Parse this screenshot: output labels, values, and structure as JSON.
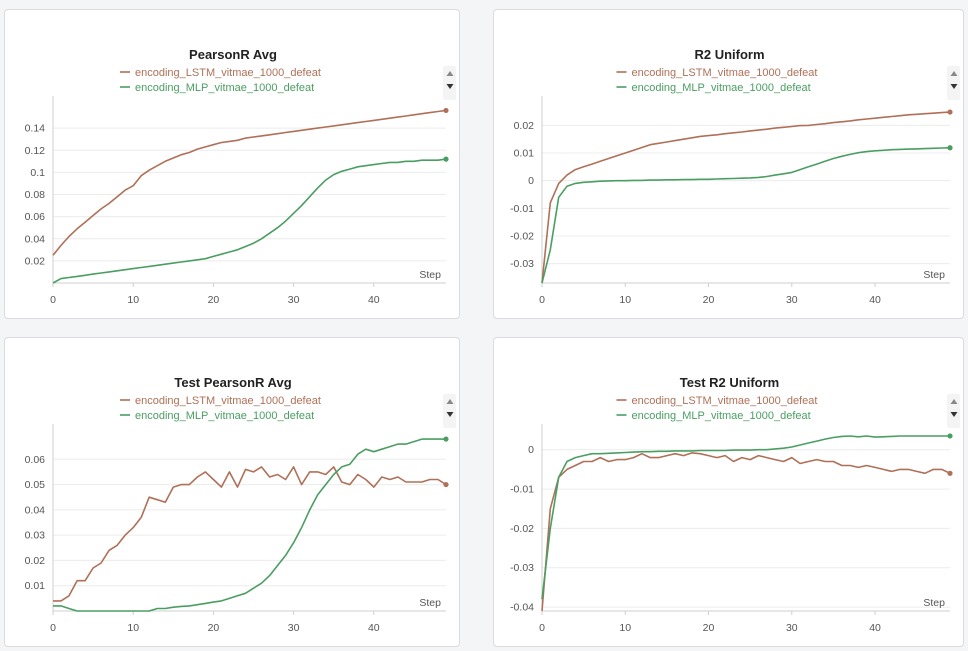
{
  "colors": {
    "lstm": "#b07057",
    "mlp": "#4a9e62",
    "grid": "#ececec",
    "axis": "#cfcfcf"
  },
  "chart_data": [
    {
      "type": "line",
      "title": "PearsonR Avg",
      "xlabel": "Step",
      "ylabel": "",
      "xlim": [
        0,
        49
      ],
      "ylim": [
        0,
        0.16
      ],
      "x_ticks": [
        0,
        10,
        20,
        30,
        40
      ],
      "y_ticks": [
        0.02,
        0.04,
        0.06,
        0.08,
        0.1,
        0.12,
        0.14
      ],
      "y_tick_labels": [
        "0.02",
        "0.04",
        "0.06",
        "0.08",
        "0.1",
        "0.12",
        "0.14"
      ],
      "legend": "top-center",
      "grid": true,
      "series": [
        {
          "name": "encoding_LSTM_vitmae_1000_defeat",
          "color": "#b07057",
          "values": [
            0.025,
            0.034,
            0.042,
            0.049,
            0.055,
            0.061,
            0.067,
            0.072,
            0.078,
            0.084,
            0.088,
            0.097,
            0.102,
            0.106,
            0.11,
            0.113,
            0.116,
            0.118,
            0.121,
            0.123,
            0.125,
            0.127,
            0.128,
            0.129,
            0.131,
            0.132,
            0.133,
            0.134,
            0.135,
            0.136,
            0.137,
            0.138,
            0.139,
            0.14,
            0.141,
            0.142,
            0.143,
            0.144,
            0.145,
            0.146,
            0.147,
            0.148,
            0.149,
            0.15,
            0.151,
            0.152,
            0.153,
            0.154,
            0.155,
            0.156
          ]
        },
        {
          "name": "encoding_MLP_vitmae_1000_defeat",
          "color": "#4a9e62",
          "values": [
            0.0,
            0.004,
            0.005,
            0.006,
            0.007,
            0.008,
            0.009,
            0.01,
            0.011,
            0.012,
            0.013,
            0.014,
            0.015,
            0.016,
            0.017,
            0.018,
            0.019,
            0.02,
            0.021,
            0.022,
            0.024,
            0.026,
            0.028,
            0.03,
            0.033,
            0.036,
            0.04,
            0.045,
            0.05,
            0.056,
            0.063,
            0.07,
            0.078,
            0.086,
            0.093,
            0.098,
            0.101,
            0.103,
            0.105,
            0.106,
            0.107,
            0.108,
            0.109,
            0.109,
            0.11,
            0.11,
            0.111,
            0.111,
            0.111,
            0.112
          ]
        }
      ]
    },
    {
      "type": "line",
      "title": "R2 Uniform",
      "xlabel": "Step",
      "ylabel": "",
      "xlim": [
        0,
        49
      ],
      "ylim": [
        -0.037,
        0.027
      ],
      "x_ticks": [
        0,
        10,
        20,
        30,
        40
      ],
      "y_ticks": [
        -0.03,
        -0.02,
        -0.01,
        0,
        0.01,
        0.02
      ],
      "y_tick_labels": [
        "-0.03",
        "-0.02",
        "-0.01",
        "0",
        "0.01",
        "0.02"
      ],
      "legend": "top-center",
      "grid": true,
      "series": [
        {
          "name": "encoding_LSTM_vitmae_1000_defeat",
          "color": "#b07057",
          "values": [
            -0.037,
            -0.008,
            -0.001,
            0.002,
            0.004,
            0.005,
            0.006,
            0.007,
            0.008,
            0.009,
            0.01,
            0.011,
            0.012,
            0.013,
            0.0135,
            0.014,
            0.0145,
            0.015,
            0.0155,
            0.016,
            0.0163,
            0.0166,
            0.017,
            0.0173,
            0.0176,
            0.018,
            0.0183,
            0.0186,
            0.019,
            0.0193,
            0.0196,
            0.0199,
            0.02,
            0.0203,
            0.0206,
            0.021,
            0.0213,
            0.0216,
            0.022,
            0.0223,
            0.0226,
            0.0229,
            0.0232,
            0.0235,
            0.0238,
            0.024,
            0.0242,
            0.0244,
            0.0246,
            0.0248
          ]
        },
        {
          "name": "encoding_MLP_vitmae_1000_defeat",
          "color": "#4a9e62",
          "values": [
            -0.037,
            -0.025,
            -0.006,
            -0.002,
            -0.001,
            -0.0006,
            -0.0004,
            -0.0002,
            -0.0001,
            0.0,
            0.0,
            0.0001,
            0.0001,
            0.0002,
            0.0002,
            0.0003,
            0.0003,
            0.0004,
            0.0004,
            0.0005,
            0.0005,
            0.0006,
            0.0007,
            0.0008,
            0.0009,
            0.001,
            0.0012,
            0.0015,
            0.002,
            0.0025,
            0.003,
            0.004,
            0.005,
            0.006,
            0.007,
            0.008,
            0.0088,
            0.0095,
            0.0101,
            0.0105,
            0.0108,
            0.011,
            0.0112,
            0.0113,
            0.0114,
            0.0115,
            0.0116,
            0.0117,
            0.0118,
            0.0119
          ]
        }
      ]
    },
    {
      "type": "line",
      "title": "Test PearsonR Avg",
      "xlabel": "Step",
      "ylabel": "",
      "xlim": [
        0,
        49
      ],
      "ylim": [
        0,
        0.07
      ],
      "x_ticks": [
        0,
        10,
        20,
        30,
        40
      ],
      "y_ticks": [
        0.01,
        0.02,
        0.03,
        0.04,
        0.05,
        0.06
      ],
      "y_tick_labels": [
        "0.01",
        "0.02",
        "0.03",
        "0.04",
        "0.05",
        "0.06"
      ],
      "legend": "top-center",
      "grid": true,
      "series": [
        {
          "name": "encoding_LSTM_vitmae_1000_defeat",
          "color": "#b07057",
          "values": [
            0.004,
            0.004,
            0.006,
            0.012,
            0.012,
            0.017,
            0.019,
            0.024,
            0.026,
            0.03,
            0.033,
            0.037,
            0.045,
            0.044,
            0.043,
            0.049,
            0.05,
            0.05,
            0.053,
            0.055,
            0.052,
            0.049,
            0.055,
            0.049,
            0.056,
            0.055,
            0.057,
            0.053,
            0.054,
            0.052,
            0.057,
            0.05,
            0.055,
            0.055,
            0.054,
            0.057,
            0.051,
            0.05,
            0.054,
            0.052,
            0.049,
            0.053,
            0.052,
            0.053,
            0.051,
            0.051,
            0.051,
            0.052,
            0.052,
            0.05
          ]
        },
        {
          "name": "encoding_MLP_vitmae_1000_defeat",
          "color": "#4a9e62",
          "values": [
            0.002,
            0.002,
            0.001,
            0.0,
            0.0,
            0.0,
            0.0,
            0.0,
            0.0,
            0.0,
            0.0,
            0.0,
            0.0,
            0.001,
            0.001,
            0.0015,
            0.0018,
            0.002,
            0.0025,
            0.003,
            0.0035,
            0.004,
            0.005,
            0.006,
            0.007,
            0.009,
            0.011,
            0.014,
            0.018,
            0.022,
            0.027,
            0.033,
            0.04,
            0.046,
            0.05,
            0.054,
            0.057,
            0.058,
            0.062,
            0.064,
            0.063,
            0.064,
            0.065,
            0.066,
            0.066,
            0.067,
            0.068,
            0.068,
            0.068,
            0.068
          ]
        }
      ]
    },
    {
      "type": "line",
      "title": "Test R2 Uniform",
      "xlabel": "Step",
      "ylabel": "",
      "xlim": [
        0,
        49
      ],
      "ylim": [
        -0.041,
        0.004
      ],
      "x_ticks": [
        0,
        10,
        20,
        30,
        40
      ],
      "y_ticks": [
        -0.04,
        -0.03,
        -0.02,
        -0.01,
        0
      ],
      "y_tick_labels": [
        "-0.04",
        "-0.03",
        "-0.02",
        "-0.01",
        "0"
      ],
      "legend": "top-center",
      "grid": true,
      "series": [
        {
          "name": "encoding_LSTM_vitmae_1000_defeat",
          "color": "#b07057",
          "values": [
            -0.041,
            -0.015,
            -0.007,
            -0.005,
            -0.004,
            -0.003,
            -0.003,
            -0.002,
            -0.003,
            -0.0025,
            -0.0025,
            -0.002,
            -0.001,
            -0.002,
            -0.002,
            -0.0015,
            -0.001,
            -0.0015,
            -0.0008,
            -0.001,
            -0.0015,
            -0.002,
            -0.0015,
            -0.003,
            -0.002,
            -0.0025,
            -0.0015,
            -0.002,
            -0.0025,
            -0.003,
            -0.002,
            -0.0035,
            -0.003,
            -0.0025,
            -0.003,
            -0.003,
            -0.004,
            -0.004,
            -0.0045,
            -0.004,
            -0.0045,
            -0.005,
            -0.0055,
            -0.005,
            -0.005,
            -0.0055,
            -0.006,
            -0.005,
            -0.005,
            -0.006
          ]
        },
        {
          "name": "encoding_MLP_vitmae_1000_defeat",
          "color": "#4a9e62",
          "values": [
            -0.038,
            -0.02,
            -0.007,
            -0.003,
            -0.002,
            -0.0015,
            -0.001,
            -0.001,
            -0.0009,
            -0.0008,
            -0.0007,
            -0.0006,
            -0.0005,
            -0.0005,
            -0.0004,
            -0.0004,
            -0.0003,
            -0.0003,
            -0.0003,
            -0.0002,
            -0.0002,
            -0.0002,
            -0.0002,
            -0.0001,
            -0.0001,
            -0.0001,
            0.0,
            0.0,
            0.0002,
            0.0004,
            0.0007,
            0.0012,
            0.0017,
            0.0022,
            0.0027,
            0.0031,
            0.0034,
            0.0035,
            0.0033,
            0.0035,
            0.0032,
            0.0033,
            0.0034,
            0.0035,
            0.0035,
            0.0035,
            0.0035,
            0.0035,
            0.0035,
            0.0035
          ]
        }
      ]
    }
  ]
}
